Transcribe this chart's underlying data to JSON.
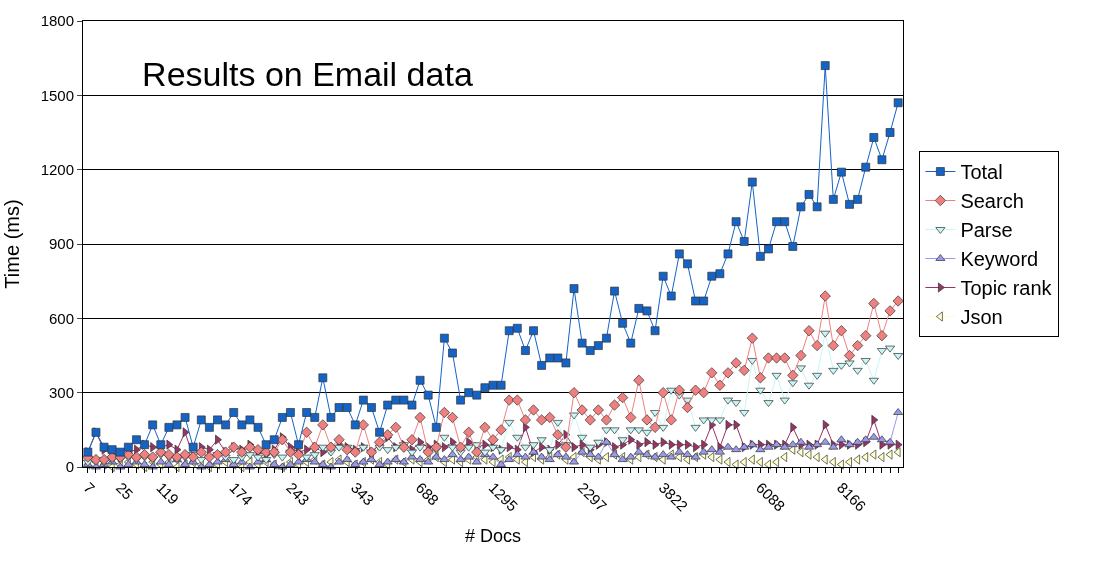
{
  "chart_data": {
    "type": "line",
    "title": "Results on Email data",
    "xlabel": "# Docs",
    "ylabel": "Time (ms)",
    "categories": [
      "7",
      null,
      null,
      null,
      "25",
      null,
      null,
      null,
      null,
      "119",
      null,
      null,
      null,
      null,
      null,
      null,
      null,
      null,
      "174",
      null,
      null,
      null,
      null,
      null,
      null,
      "243",
      null,
      null,
      null,
      null,
      null,
      null,
      null,
      "343",
      null,
      null,
      null,
      null,
      null,
      null,
      null,
      "688",
      null,
      null,
      null,
      null,
      null,
      null,
      null,
      null,
      "1295",
      null,
      null,
      null,
      null,
      null,
      null,
      null,
      null,
      null,
      null,
      "2297",
      null,
      null,
      null,
      null,
      null,
      null,
      null,
      null,
      null,
      "3822",
      null,
      null,
      null,
      null,
      null,
      null,
      null,
      null,
      null,
      null,
      null,
      "6088",
      null,
      null,
      null,
      null,
      null,
      null,
      null,
      null,
      null,
      "8166",
      null,
      null,
      null,
      null,
      null,
      null,
      null
    ],
    "ylim": [
      0,
      1800
    ],
    "yticks": [
      0,
      300,
      600,
      900,
      1200,
      1500,
      1800
    ],
    "grid": "y",
    "legend": "right",
    "series": [
      {
        "name": "Total",
        "color": "#1464c8",
        "marker": "square",
        "values": [
          60,
          140,
          80,
          70,
          60,
          80,
          110,
          90,
          170,
          90,
          160,
          170,
          200,
          80,
          190,
          160,
          190,
          170,
          220,
          170,
          190,
          160,
          90,
          110,
          200,
          220,
          90,
          220,
          200,
          360,
          200,
          240,
          240,
          170,
          270,
          240,
          140,
          250,
          270,
          270,
          250,
          350,
          290,
          160,
          520,
          460,
          270,
          300,
          290,
          320,
          330,
          330,
          550,
          560,
          470,
          550,
          410,
          440,
          440,
          420,
          720,
          500,
          470,
          490,
          520,
          710,
          580,
          500,
          640,
          630,
          550,
          770,
          690,
          860,
          820,
          670,
          670,
          770,
          780,
          860,
          990,
          910,
          1150,
          850,
          880,
          990,
          990,
          890,
          1050,
          1100,
          1050,
          1620,
          1080,
          1190,
          1060,
          1080,
          1210,
          1330,
          1240,
          1350,
          1470
        ]
      },
      {
        "name": "Search",
        "color": "#f08080",
        "marker": "diamond",
        "values": [
          40,
          30,
          30,
          40,
          40,
          50,
          40,
          50,
          40,
          60,
          50,
          40,
          50,
          40,
          60,
          40,
          50,
          60,
          80,
          60,
          80,
          70,
          60,
          60,
          110,
          60,
          50,
          140,
          80,
          170,
          80,
          110,
          70,
          60,
          170,
          60,
          100,
          130,
          160,
          80,
          110,
          200,
          60,
          80,
          220,
          200,
          80,
          140,
          60,
          160,
          110,
          150,
          270,
          270,
          190,
          230,
          190,
          200,
          130,
          80,
          300,
          230,
          190,
          230,
          190,
          250,
          280,
          200,
          350,
          190,
          160,
          300,
          190,
          310,
          240,
          310,
          300,
          380,
          330,
          380,
          420,
          390,
          520,
          360,
          440,
          440,
          440,
          370,
          450,
          550,
          490,
          690,
          490,
          550,
          450,
          490,
          530,
          660,
          530,
          630,
          670
        ]
      },
      {
        "name": "Parse",
        "color": "#c8f5f5",
        "marker": "triangle-down",
        "values": [
          20,
          30,
          20,
          30,
          30,
          40,
          30,
          40,
          30,
          50,
          40,
          30,
          40,
          50,
          30,
          40,
          50,
          40,
          30,
          40,
          50,
          40,
          30,
          50,
          40,
          60,
          50,
          40,
          50,
          80,
          60,
          80,
          80,
          60,
          80,
          60,
          80,
          70,
          80,
          90,
          60,
          80,
          60,
          70,
          120,
          80,
          60,
          80,
          90,
          60,
          80,
          70,
          180,
          120,
          80,
          90,
          110,
          70,
          180,
          90,
          210,
          120,
          80,
          100,
          150,
          150,
          110,
          150,
          150,
          140,
          220,
          160,
          310,
          290,
          270,
          160,
          190,
          190,
          190,
          270,
          260,
          220,
          430,
          310,
          260,
          370,
          270,
          340,
          400,
          330,
          370,
          540,
          390,
          410,
          420,
          390,
          430,
          350,
          470,
          480,
          450
        ]
      },
      {
        "name": "Keyword",
        "color": "#9999ee",
        "marker": "triangle-up",
        "values": [
          10,
          0,
          10,
          20,
          0,
          10,
          20,
          10,
          0,
          20,
          10,
          30,
          10,
          20,
          0,
          10,
          20,
          30,
          10,
          20,
          0,
          20,
          30,
          10,
          0,
          10,
          20,
          30,
          20,
          10,
          0,
          20,
          30,
          10,
          20,
          30,
          10,
          20,
          30,
          20,
          40,
          30,
          20,
          40,
          30,
          50,
          30,
          40,
          20,
          50,
          40,
          10,
          30,
          50,
          40,
          60,
          40,
          30,
          50,
          40,
          20,
          60,
          50,
          40,
          100,
          50,
          30,
          40,
          60,
          50,
          40,
          50,
          40,
          60,
          50,
          40,
          60,
          70,
          60,
          80,
          70,
          80,
          90,
          70,
          80,
          90,
          80,
          90,
          100,
          80,
          90,
          100,
          80,
          110,
          90,
          100,
          110,
          120,
          110,
          100,
          220
        ]
      },
      {
        "name": "Topic rank",
        "color": "#993366",
        "marker": "triangle-right",
        "values": [
          60,
          140,
          70,
          50,
          40,
          60,
          70,
          90,
          80,
          80,
          90,
          70,
          140,
          40,
          80,
          70,
          110,
          60,
          80,
          70,
          90,
          60,
          50,
          70,
          120,
          80,
          60,
          70,
          80,
          60,
          70,
          90,
          80,
          70,
          80,
          60,
          90,
          120,
          80,
          90,
          70,
          100,
          80,
          90,
          80,
          100,
          70,
          100,
          80,
          90,
          80,
          70,
          80,
          70,
          160,
          60,
          80,
          70,
          90,
          130,
          80,
          90,
          70,
          90,
          100,
          80,
          90,
          110,
          90,
          100,
          90,
          100,
          90,
          90,
          90,
          80,
          90,
          170,
          80,
          170,
          170,
          80,
          90,
          90,
          90,
          90,
          90,
          160,
          90,
          90,
          90,
          170,
          90,
          90,
          90,
          90,
          100,
          190,
          90,
          90,
          90
        ]
      },
      {
        "name": "Json",
        "color": "#ffffc8",
        "marker": "triangle-left",
        "values": [
          10,
          20,
          10,
          0,
          10,
          20,
          10,
          0,
          20,
          10,
          20,
          0,
          10,
          20,
          10,
          0,
          10,
          20,
          10,
          0,
          20,
          10,
          20,
          10,
          0,
          20,
          10,
          20,
          30,
          10,
          20,
          30,
          20,
          10,
          20,
          30,
          20,
          10,
          30,
          20,
          30,
          20,
          30,
          40,
          20,
          30,
          20,
          30,
          40,
          30,
          20,
          30,
          40,
          30,
          20,
          40,
          30,
          40,
          50,
          30,
          40,
          60,
          40,
          30,
          40,
          50,
          40,
          30,
          40,
          50,
          40,
          30,
          50,
          40,
          30,
          40,
          50,
          40,
          30,
          20,
          10,
          20,
          30,
          20,
          10,
          20,
          40,
          70,
          60,
          50,
          40,
          30,
          20,
          10,
          20,
          30,
          40,
          50,
          40,
          50,
          60
        ]
      }
    ]
  }
}
